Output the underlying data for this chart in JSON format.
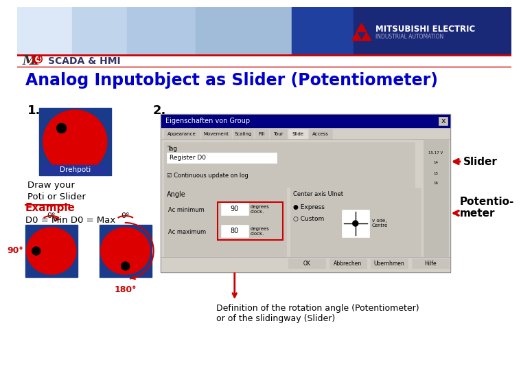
{
  "bg_color": "#ffffff",
  "title_text": "Analog Inputobject as Slider (Potentiometer)",
  "title_color": "#0000cc",
  "scada_text": "SCADA & HMI",
  "mitsubishi_text": "MITSUBISHI ELECTRIC",
  "industrial_text": "INDUSTRIAL AUTOMATION",
  "step1_text": "1.",
  "step2_text": "2.",
  "drehpoti_text": "Drehpoti",
  "draw_text": "Draw your\nPoti or Slider",
  "example_text": "Example",
  "d0_text": "D0 = Min D0 = Max",
  "angle0_left": "0°",
  "angle90": "90°",
  "angle0_right": "0°",
  "angle180": "180°",
  "slider_label": "Slider",
  "potentio_label": "Potentio-\nmeter",
  "definition_text": "Definition of the rotation angle (Potentiometer)\nor of the slidingway (Slider)",
  "red_color": "#cc0000",
  "blue_color": "#1a3a8c",
  "circle_red": "#dd0000",
  "dot_black": "#000000",
  "dialog_bg": "#d4d0c8",
  "dialog_title": "Eigenschaften von Group",
  "arrow_color": "#cc0000"
}
